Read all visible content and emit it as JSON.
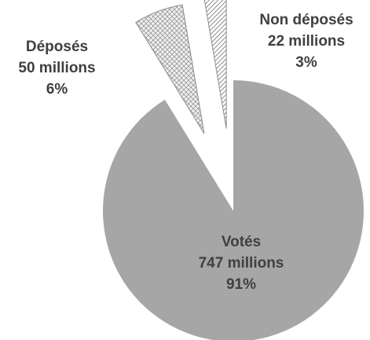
{
  "chart_data": {
    "type": "pie",
    "title": "",
    "unit": "millions",
    "slices": [
      {
        "name": "Votés",
        "value": 747,
        "value_label": "747 millions",
        "percent_label": "91%",
        "color": "#a6a6a6",
        "pattern": "solid",
        "exploded": false
      },
      {
        "name": "Déposés",
        "value": 50,
        "value_label": "50 millions",
        "percent_label": "6%",
        "color": "#d9d9d9",
        "pattern": "crosshatch",
        "exploded": true
      },
      {
        "name": "Non déposés",
        "value": 22,
        "value_label": "22 millions",
        "percent_label": "3%",
        "color": "#bfbfbf",
        "pattern": "diagonal-stripes",
        "exploded": true
      }
    ],
    "start_angle": "12 o'clock, clockwise",
    "legend": "none"
  }
}
